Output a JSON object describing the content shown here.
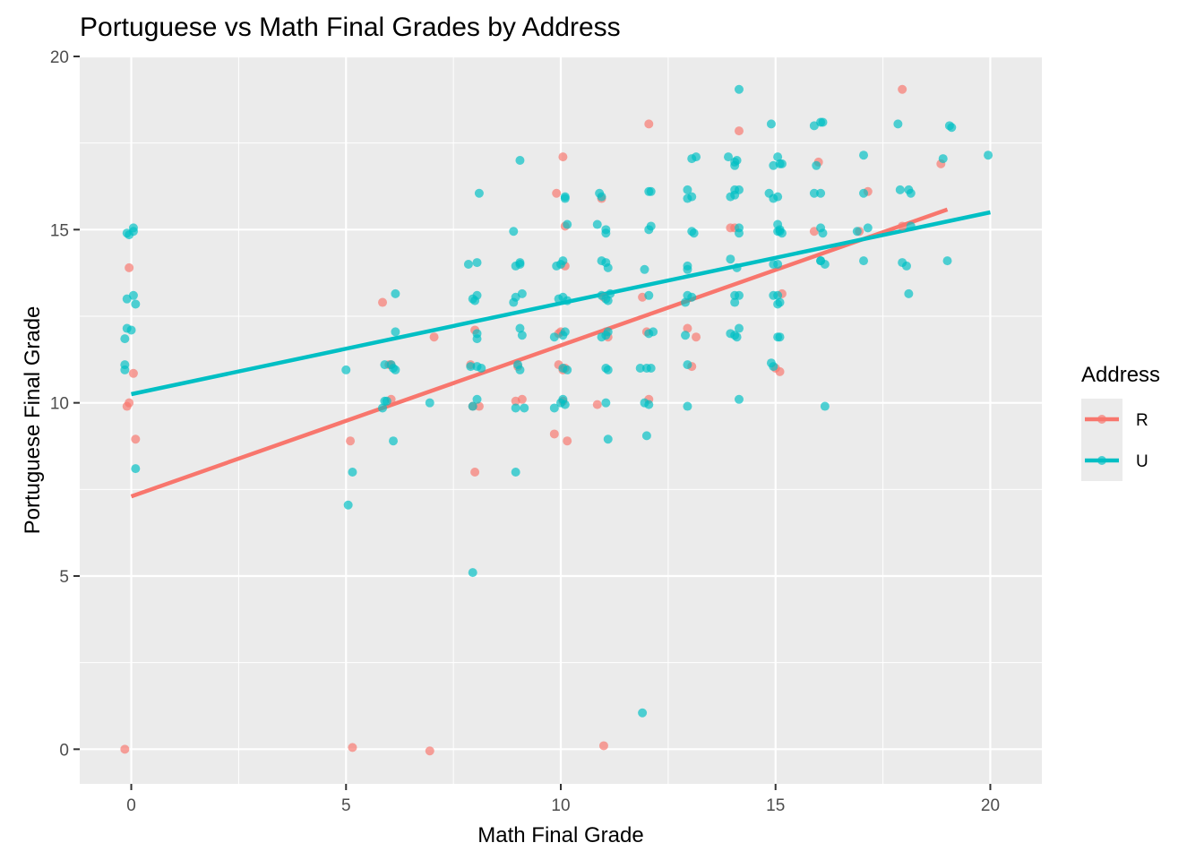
{
  "chart_data": {
    "type": "scatter",
    "title": "Portuguese vs Math Final Grades by Address",
    "xlabel": "Math Final Grade",
    "ylabel": "Portuguese Final Grade",
    "xlim": [
      -1.2,
      21.2
    ],
    "ylim": [
      -1,
      20
    ],
    "xticks": [
      0,
      5,
      10,
      15,
      20
    ],
    "yticks": [
      0,
      5,
      10,
      15,
      20
    ],
    "grid": true,
    "legend": {
      "title": "Address",
      "position": "right",
      "entries": [
        {
          "label": "R",
          "color": "#F8766D"
        },
        {
          "label": "U",
          "color": "#00BFC4"
        }
      ]
    },
    "series": [
      {
        "name": "R",
        "color": "#F8766D",
        "fit": {
          "x": [
            0,
            19
          ],
          "y": [
            7.3,
            15.58
          ]
        },
        "points": [
          [
            -0.15,
            0
          ],
          [
            5.15,
            0.05
          ],
          [
            6.95,
            -0.05
          ],
          [
            11,
            0.1
          ],
          [
            -0.05,
            13.9
          ],
          [
            0.05,
            10.85
          ],
          [
            0.1,
            8.95
          ],
          [
            -0.1,
            9.9
          ],
          [
            -0.05,
            10
          ],
          [
            5.1,
            8.9
          ],
          [
            5.85,
            12.9
          ],
          [
            6,
            11.1
          ],
          [
            6.05,
            10.1
          ],
          [
            6.05,
            11.1
          ],
          [
            7.05,
            11.9
          ],
          [
            7.9,
            11.1
          ],
          [
            8,
            12.1
          ],
          [
            8,
            8
          ],
          [
            8.1,
            9.9
          ],
          [
            7.95,
            9.9
          ],
          [
            8.95,
            10.05
          ],
          [
            9.1,
            10.1
          ],
          [
            9,
            11.05
          ],
          [
            9.85,
            9.1
          ],
          [
            9.9,
            16.05
          ],
          [
            9.95,
            12
          ],
          [
            10,
            12.05
          ],
          [
            9.95,
            11.1
          ],
          [
            10.05,
            10.95
          ],
          [
            10.05,
            17.1
          ],
          [
            10.1,
            15.1
          ],
          [
            10.1,
            13.95
          ],
          [
            10.15,
            8.9
          ],
          [
            10.1,
            11
          ],
          [
            10.05,
            10.05
          ],
          [
            10.85,
            9.95
          ],
          [
            10.95,
            15.9
          ],
          [
            11,
            13.05
          ],
          [
            11.05,
            12.05
          ],
          [
            11.1,
            11.9
          ],
          [
            11.9,
            13.05
          ],
          [
            12.05,
            10.1
          ],
          [
            12.05,
            18.05
          ],
          [
            12,
            12.05
          ],
          [
            12.95,
            12.15
          ],
          [
            13.05,
            11.05
          ],
          [
            13.15,
            11.9
          ],
          [
            13.95,
            15.05
          ],
          [
            14.05,
            15.05
          ],
          [
            14.15,
            17.85
          ],
          [
            15,
            11.0
          ],
          [
            15.1,
            10.9
          ],
          [
            15.15,
            13.15
          ],
          [
            15.9,
            14.95
          ],
          [
            16.0,
            16.95
          ],
          [
            16.95,
            14.95
          ],
          [
            17.15,
            16.1
          ],
          [
            17.95,
            15.1
          ],
          [
            17.95,
            19.05
          ],
          [
            18.85,
            16.9
          ]
        ]
      },
      {
        "name": "U",
        "color": "#00BFC4",
        "fit": {
          "x": [
            0,
            20
          ],
          "y": [
            10.25,
            15.5
          ]
        },
        "points": [
          [
            -0.1,
            14.9
          ],
          [
            -0.05,
            14.85
          ],
          [
            0.05,
            14.95
          ],
          [
            0.05,
            15.05
          ],
          [
            -0.1,
            13
          ],
          [
            0.05,
            13.1
          ],
          [
            0.1,
            12.85
          ],
          [
            -0.1,
            12.15
          ],
          [
            -0.15,
            11.85
          ],
          [
            0,
            12.1
          ],
          [
            -0.15,
            11.1
          ],
          [
            -0.15,
            10.95
          ],
          [
            0.1,
            8.1
          ],
          [
            5,
            10.95
          ],
          [
            5.15,
            8
          ],
          [
            5.05,
            7.05
          ],
          [
            5.85,
            9.85
          ],
          [
            5.9,
            10.05
          ],
          [
            5.95,
            10.05
          ],
          [
            6.05,
            11.1
          ],
          [
            6.1,
            11
          ],
          [
            6.15,
            10.95
          ],
          [
            5.9,
            11.1
          ],
          [
            6.15,
            13.15
          ],
          [
            6.15,
            12.05
          ],
          [
            6.1,
            8.9
          ],
          [
            6.95,
            10
          ],
          [
            7.85,
            14
          ],
          [
            8.05,
            14.05
          ],
          [
            7.95,
            13
          ],
          [
            8.05,
            13.1
          ],
          [
            8,
            12.95
          ],
          [
            8.05,
            11.85
          ],
          [
            8.05,
            12
          ],
          [
            7.9,
            11.05
          ],
          [
            8.05,
            11.05
          ],
          [
            8.15,
            11
          ],
          [
            7.95,
            9.9
          ],
          [
            8.05,
            10.1
          ],
          [
            8.1,
            16.05
          ],
          [
            7.95,
            5.1
          ],
          [
            8.9,
            14.95
          ],
          [
            8.95,
            13.95
          ],
          [
            9.05,
            14
          ],
          [
            9.05,
            14.05
          ],
          [
            8.95,
            13.05
          ],
          [
            9.1,
            13.15
          ],
          [
            8.9,
            12.9
          ],
          [
            9.05,
            12.15
          ],
          [
            9.1,
            11.95
          ],
          [
            9,
            11.1
          ],
          [
            9.05,
            10.95
          ],
          [
            8.95,
            9.85
          ],
          [
            9.15,
            9.85
          ],
          [
            9.05,
            17
          ],
          [
            8.95,
            8
          ],
          [
            9.9,
            13.95
          ],
          [
            10,
            14
          ],
          [
            10.05,
            14.1
          ],
          [
            9.95,
            13
          ],
          [
            10.05,
            13.05
          ],
          [
            10.15,
            12.95
          ],
          [
            9.85,
            11.9
          ],
          [
            10.05,
            11.95
          ],
          [
            10.1,
            12.05
          ],
          [
            10.05,
            11
          ],
          [
            10.15,
            10.95
          ],
          [
            10.05,
            10.1
          ],
          [
            10,
            10
          ],
          [
            10.1,
            9.95
          ],
          [
            10.1,
            15.9
          ],
          [
            10.15,
            15.15
          ],
          [
            9.85,
            9.85
          ],
          [
            10.1,
            15.95
          ],
          [
            10.9,
            16.05
          ],
          [
            10.95,
            15.95
          ],
          [
            10.85,
            15.15
          ],
          [
            11.05,
            15
          ],
          [
            11.05,
            14.9
          ],
          [
            10.95,
            14.1
          ],
          [
            11.05,
            14.05
          ],
          [
            11.1,
            13.9
          ],
          [
            10.95,
            13.1
          ],
          [
            11.05,
            13
          ],
          [
            11.1,
            12.95
          ],
          [
            11.15,
            13.15
          ],
          [
            10.95,
            11.9
          ],
          [
            11.05,
            11.95
          ],
          [
            11.1,
            12.05
          ],
          [
            11.05,
            11
          ],
          [
            11.1,
            10.95
          ],
          [
            11.05,
            10
          ],
          [
            11.1,
            8.95
          ],
          [
            11.85,
            11
          ],
          [
            12,
            11
          ],
          [
            12.1,
            11
          ],
          [
            11.95,
            10
          ],
          [
            12.05,
            9.95
          ],
          [
            12,
            9.05
          ],
          [
            11.95,
            13.85
          ],
          [
            12.05,
            13.1
          ],
          [
            12.05,
            15
          ],
          [
            12.1,
            15.1
          ],
          [
            12.05,
            16.1
          ],
          [
            12.1,
            16.1
          ],
          [
            12.15,
            12.05
          ],
          [
            12.05,
            12
          ],
          [
            11.9,
            1.05
          ],
          [
            12.9,
            11.95
          ],
          [
            12.95,
            11.1
          ],
          [
            12.95,
            9.9
          ],
          [
            12.9,
            12.9
          ],
          [
            12.95,
            13.1
          ],
          [
            13.05,
            13.05
          ],
          [
            12.95,
            13.95
          ],
          [
            12.95,
            13.85
          ],
          [
            13.05,
            14.95
          ],
          [
            13.1,
            14.9
          ],
          [
            12.95,
            16.15
          ],
          [
            12.95,
            15.9
          ],
          [
            13.05,
            15.95
          ],
          [
            13.05,
            17.05
          ],
          [
            13.15,
            17.1
          ],
          [
            13.9,
            17.1
          ],
          [
            14.05,
            16.95
          ],
          [
            14.1,
            17.0
          ],
          [
            14.05,
            16.85
          ],
          [
            14.05,
            16.15
          ],
          [
            14.15,
            16.15
          ],
          [
            13.95,
            15.95
          ],
          [
            14.05,
            16
          ],
          [
            13.95,
            14.15
          ],
          [
            14.1,
            13.9
          ],
          [
            14.15,
            14.9
          ],
          [
            14.15,
            15.05
          ],
          [
            14.05,
            13.1
          ],
          [
            14.15,
            13.1
          ],
          [
            14.05,
            12.9
          ],
          [
            13.95,
            12
          ],
          [
            14.05,
            11.95
          ],
          [
            14.1,
            11.9
          ],
          [
            14.15,
            12.15
          ],
          [
            14.15,
            10.1
          ],
          [
            14.15,
            19.05
          ],
          [
            14.85,
            16.05
          ],
          [
            14.95,
            15.9
          ],
          [
            15.05,
            15.95
          ],
          [
            15.1,
            16.9
          ],
          [
            14.95,
            16.85
          ],
          [
            15.05,
            17.1
          ],
          [
            14.9,
            18.05
          ],
          [
            15.05,
            15.15
          ],
          [
            15.1,
            15
          ],
          [
            15.05,
            14.95
          ],
          [
            15.15,
            14.9
          ],
          [
            14.95,
            14
          ],
          [
            15.05,
            14
          ],
          [
            14.95,
            13.1
          ],
          [
            15.05,
            13.1
          ],
          [
            15.1,
            12.9
          ],
          [
            15.05,
            12.85
          ],
          [
            14.9,
            11.15
          ],
          [
            14.95,
            11.05
          ],
          [
            15.05,
            11.9
          ],
          [
            15.1,
            11.9
          ],
          [
            15.15,
            16.9
          ],
          [
            15.1,
            14.95
          ],
          [
            15.9,
            18
          ],
          [
            16.05,
            18.1
          ],
          [
            16.1,
            18.1
          ],
          [
            15.95,
            16.85
          ],
          [
            16.05,
            16.05
          ],
          [
            16.05,
            15.05
          ],
          [
            16.1,
            14.9
          ],
          [
            16.05,
            14.1
          ],
          [
            16.15,
            14.0
          ],
          [
            16.05,
            14.1
          ],
          [
            16.15,
            9.9
          ],
          [
            15.9,
            16.05
          ],
          [
            16.9,
            14.95
          ],
          [
            17.05,
            14.1
          ],
          [
            17.05,
            16.05
          ],
          [
            17.05,
            17.15
          ],
          [
            17.15,
            15.05
          ],
          [
            17.85,
            18.05
          ],
          [
            17.9,
            16.15
          ],
          [
            17.95,
            14.05
          ],
          [
            18.05,
            13.95
          ],
          [
            18.1,
            13.15
          ],
          [
            18.1,
            16.15
          ],
          [
            18.15,
            16.05
          ],
          [
            18.15,
            15.1
          ],
          [
            18.9,
            17.05
          ],
          [
            19,
            14.1
          ],
          [
            19.05,
            18
          ],
          [
            19.1,
            17.95
          ],
          [
            19.95,
            17.15
          ]
        ]
      }
    ]
  }
}
